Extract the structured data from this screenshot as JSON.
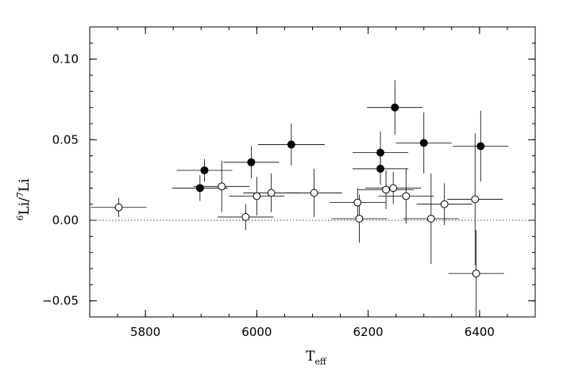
{
  "chart_data": {
    "type": "scatter",
    "xlabel": "T",
    "xlabel_sub": "eff",
    "ylabel_parts": {
      "sup1": "6",
      "base1": "Li/",
      "sup2": "7",
      "base2": "Li"
    },
    "xlim": [
      5700,
      6500
    ],
    "ylim": [
      -0.06,
      0.12
    ],
    "x_major_ticks": [
      5800,
      6000,
      6200,
      6400
    ],
    "x_minor_step": 50,
    "y_major_ticks": [
      -0.05,
      0.0,
      0.05,
      0.1
    ],
    "y_minor_step": 0.01,
    "x_tick_labels": [
      "5800",
      "6000",
      "6200",
      "6400"
    ],
    "y_tick_labels": [
      "−0.05",
      "0.00",
      "0.05",
      "0.10"
    ],
    "reference_line": {
      "y": 0.0,
      "style": "dotted"
    },
    "series": [
      {
        "marker": "filled-circle",
        "points": [
          {
            "x": 5898,
            "y": 0.02,
            "xerr": 50,
            "yerr": 0.008
          },
          {
            "x": 5906,
            "y": 0.031,
            "xerr": 50,
            "yerr": 0.007
          },
          {
            "x": 5990,
            "y": 0.036,
            "xerr": 50,
            "yerr": 0.01
          },
          {
            "x": 6062,
            "y": 0.047,
            "xerr": 60,
            "yerr": 0.013
          },
          {
            "x": 6222,
            "y": 0.042,
            "xerr": 50,
            "yerr": 0.013
          },
          {
            "x": 6222,
            "y": 0.032,
            "xerr": 50,
            "yerr": 0.01
          },
          {
            "x": 6248,
            "y": 0.07,
            "xerr": 50,
            "yerr": 0.017
          },
          {
            "x": 6300,
            "y": 0.048,
            "xerr": 50,
            "yerr": 0.019
          },
          {
            "x": 6402,
            "y": 0.046,
            "xerr": 50,
            "yerr": 0.022
          }
        ]
      },
      {
        "marker": "open-circle",
        "points": [
          {
            "x": 5752,
            "y": 0.008,
            "xerr": 50,
            "yerr": 0.006
          },
          {
            "x": 5937,
            "y": 0.021,
            "xerr": 50,
            "yerr": 0.016
          },
          {
            "x": 5980,
            "y": 0.002,
            "xerr": 50,
            "yerr": 0.008
          },
          {
            "x": 6000,
            "y": 0.015,
            "xerr": 50,
            "yerr": 0.012
          },
          {
            "x": 6026,
            "y": 0.017,
            "xerr": 50,
            "yerr": 0.012
          },
          {
            "x": 6103,
            "y": 0.017,
            "xerr": 50,
            "yerr": 0.015
          },
          {
            "x": 6181,
            "y": 0.011,
            "xerr": 50,
            "yerr": 0.009
          },
          {
            "x": 6184,
            "y": 0.001,
            "xerr": 50,
            "yerr": 0.015
          },
          {
            "x": 6232,
            "y": 0.019,
            "xerr": 50,
            "yerr": 0.012
          },
          {
            "x": 6245,
            "y": 0.02,
            "xerr": 50,
            "yerr": 0.01
          },
          {
            "x": 6268,
            "y": 0.015,
            "xerr": 50,
            "yerr": 0.017
          },
          {
            "x": 6313,
            "y": 0.001,
            "xerr": 50,
            "yerr": 0.028
          },
          {
            "x": 6337,
            "y": 0.01,
            "xerr": 50,
            "yerr": 0.013
          },
          {
            "x": 6392,
            "y": 0.013,
            "xerr": 50,
            "yerr": 0.041
          },
          {
            "x": 6394,
            "y": -0.033,
            "xerr": 50,
            "yerr": 0.027
          }
        ]
      }
    ]
  }
}
